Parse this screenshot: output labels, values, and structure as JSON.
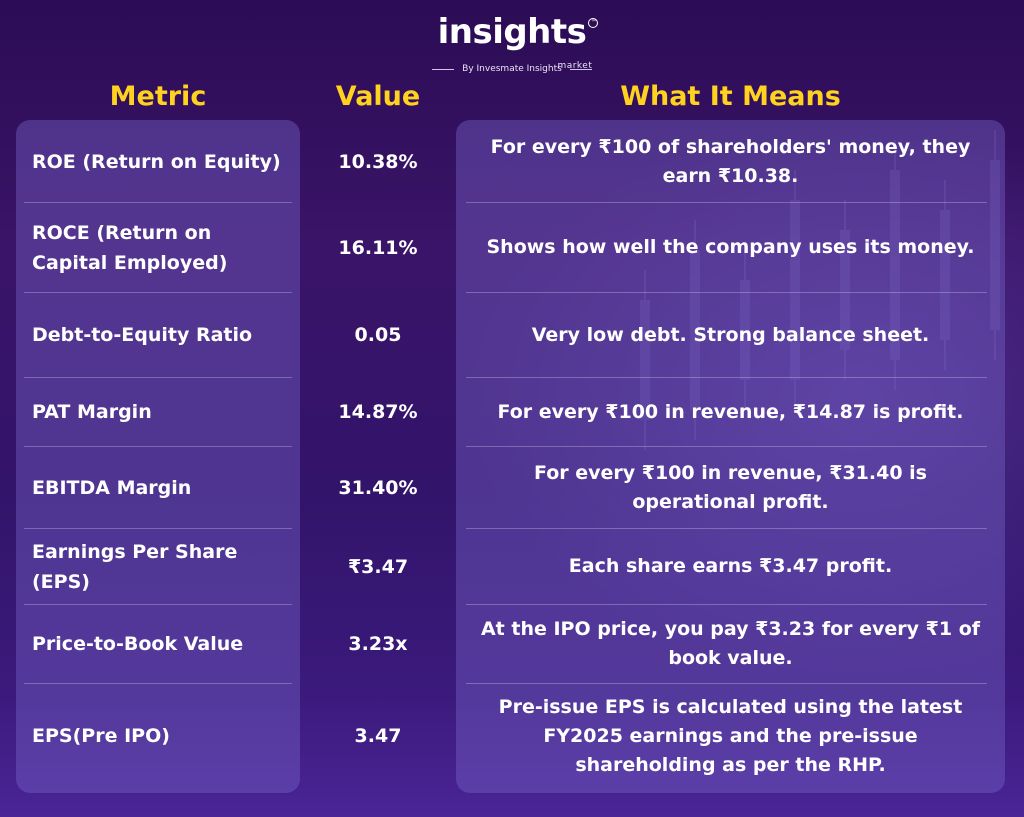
{
  "brand": {
    "name": "insights",
    "sub": "market",
    "tagline": "By Invesmate Insights"
  },
  "headers": {
    "metric": "Metric",
    "value": "Value",
    "meaning": "What It Means"
  },
  "colors": {
    "header": "#ffd21f",
    "background": "#32146a",
    "panel": "#6d5fb8"
  },
  "rows": [
    {
      "metric": "ROE (Return on Equity)",
      "value": "10.38%",
      "meaning": "For every ₹100 of shareholders' money, they earn ₹10.38."
    },
    {
      "metric": "ROCE (Return on Capital Employed)",
      "value": "16.11%",
      "meaning": "Shows how well the company uses its money."
    },
    {
      "metric": "Debt-to-Equity Ratio",
      "value": "0.05",
      "meaning": "Very low debt. Strong balance sheet."
    },
    {
      "metric": "PAT Margin",
      "value": "14.87%",
      "meaning": "For every ₹100 in revenue, ₹14.87 is profit."
    },
    {
      "metric": "EBITDA Margin",
      "value": "31.40%",
      "meaning": "For every ₹100 in revenue, ₹31.40 is operational profit."
    },
    {
      "metric": "Earnings Per Share (EPS)",
      "value": "₹3.47",
      "meaning": "Each share earns ₹3.47 profit."
    },
    {
      "metric": "Price-to-Book Value",
      "value": "3.23x",
      "meaning": "At the IPO price, you pay ₹3.23 for every ₹1 of book value."
    },
    {
      "metric": "EPS(Pre IPO)",
      "value": "3.47",
      "meaning": "Pre-issue EPS is calculated using the latest FY2025 earnings and the pre-issue shareholding as per the RHP."
    }
  ]
}
